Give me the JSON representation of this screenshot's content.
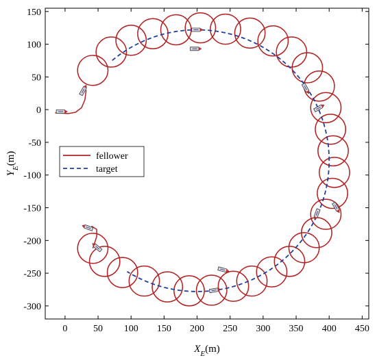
{
  "chart_data": {
    "type": "line",
    "xlabel": "X_E(m)",
    "ylabel": "Y_E(m)",
    "xlim": [
      -30,
      460
    ],
    "ylim": [
      -320,
      155
    ],
    "xticks": [
      0,
      50,
      100,
      150,
      200,
      250,
      300,
      350,
      400,
      450
    ],
    "yticks": [
      -300,
      -250,
      -200,
      -150,
      -100,
      -50,
      0,
      50,
      100,
      150
    ],
    "legend_position": "center-left",
    "grid": false,
    "colors": {
      "fellower": "#b22222",
      "target": "#1f3f9f",
      "boat_body": "#d9d9e6",
      "boat_tip": "#c83232"
    },
    "target": {
      "center": [
        200,
        -78
      ],
      "radius": 200,
      "start_angle_deg": 130,
      "end_angle_deg": 238
    },
    "fellower": {
      "loop_radius": 23,
      "loop_centers": [
        [
          42,
          60
        ],
        [
          70,
          88
        ],
        [
          100,
          106
        ],
        [
          133,
          116
        ],
        [
          168,
          122
        ],
        [
          205,
          125
        ],
        [
          243,
          123
        ],
        [
          280,
          117
        ],
        [
          315,
          105
        ],
        [
          343,
          88
        ],
        [
          367,
          64
        ],
        [
          385,
          36
        ],
        [
          395,
          3
        ],
        [
          402,
          -30
        ],
        [
          406,
          -63
        ],
        [
          408,
          -96
        ],
        [
          405,
          -128
        ],
        [
          395,
          -160
        ],
        [
          381,
          -188
        ],
        [
          362,
          -211
        ],
        [
          340,
          -232
        ],
        [
          313,
          -248
        ],
        [
          283,
          -262
        ],
        [
          255,
          -270
        ],
        [
          222,
          -276
        ],
        [
          188,
          -277
        ],
        [
          155,
          -271
        ],
        [
          120,
          -262
        ],
        [
          87,
          -249
        ],
        [
          60,
          -232
        ],
        [
          42,
          -212
        ]
      ],
      "start_tail": [
        [
          -15,
          -5
        ],
        [
          5,
          -6
        ],
        [
          16,
          -4
        ],
        [
          25,
          3
        ],
        [
          30,
          15
        ],
        [
          32,
          30
        ]
      ],
      "end_tail": [
        [
          42,
          -212
        ],
        [
          48,
          -194
        ],
        [
          48,
          -183
        ],
        [
          40,
          -178
        ]
      ]
    },
    "boats": [
      {
        "x": -5,
        "y": -3,
        "heading_deg": 0
      },
      {
        "x": 28,
        "y": 30,
        "heading_deg": 60
      },
      {
        "x": 200,
        "y": 122,
        "heading_deg": 0
      },
      {
        "x": 198,
        "y": 93,
        "heading_deg": 0
      },
      {
        "x": 365,
        "y": 32,
        "heading_deg": -60
      },
      {
        "x": 385,
        "y": 3,
        "heading_deg": 30
      },
      {
        "x": 411,
        "y": -150,
        "heading_deg": -60
      },
      {
        "x": 381,
        "y": -160,
        "heading_deg": -110
      },
      {
        "x": 34,
        "y": -180,
        "heading_deg": 160
      },
      {
        "x": 48,
        "y": -210,
        "heading_deg": 140
      },
      {
        "x": 240,
        "y": -245,
        "heading_deg": -15
      },
      {
        "x": 227,
        "y": -276,
        "heading_deg": 10
      }
    ],
    "legend": [
      {
        "label": "fellower",
        "style": "solid"
      },
      {
        "label": "target",
        "style": "dashed"
      }
    ]
  }
}
